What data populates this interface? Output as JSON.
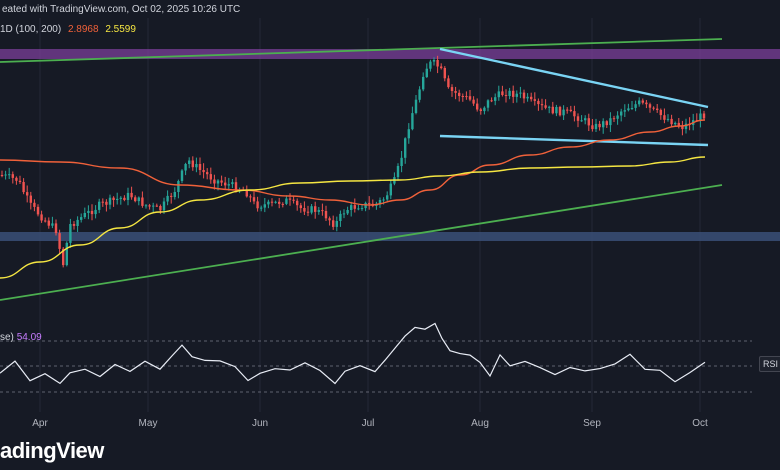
{
  "header": {
    "published": "eated with TradingView.com, Oct 02, 2025 10:26 UTC",
    "ma_label": "1D (100, 200)",
    "ma100_value": "2.8968",
    "ma200_value": "2.5599"
  },
  "rsi": {
    "label": "se)",
    "value": "54.09",
    "badge": "RSI"
  },
  "logo_text": "adingView",
  "colors": {
    "background": "#161a25",
    "candle_up": "#26a69a",
    "candle_down": "#ef5350",
    "ma100": "#f0613a",
    "ma200": "#f5e642",
    "trendline": "#4caf50",
    "wedge": "#7ad4f4",
    "supply_zone": "#7b3f99",
    "demand_zone": "#3a5078",
    "rsi_line": "#e8ecf5"
  },
  "chart_data": {
    "type": "candlestick",
    "x_axis_labels": [
      "Apr",
      "May",
      "Jun",
      "Jul",
      "Aug",
      "Sep",
      "Oct"
    ],
    "moving_averages": [
      {
        "name": "MA 100",
        "last_value": 2.8968
      },
      {
        "name": "MA 200",
        "last_value": 2.5599
      }
    ],
    "indicators": [
      {
        "name": "RSI",
        "last_value": 54.09
      }
    ],
    "annotations": [
      "supply zone",
      "demand zone",
      "ascending trendline upper",
      "ascending trendline lower",
      "descending wedge resistance",
      "wedge support"
    ]
  }
}
